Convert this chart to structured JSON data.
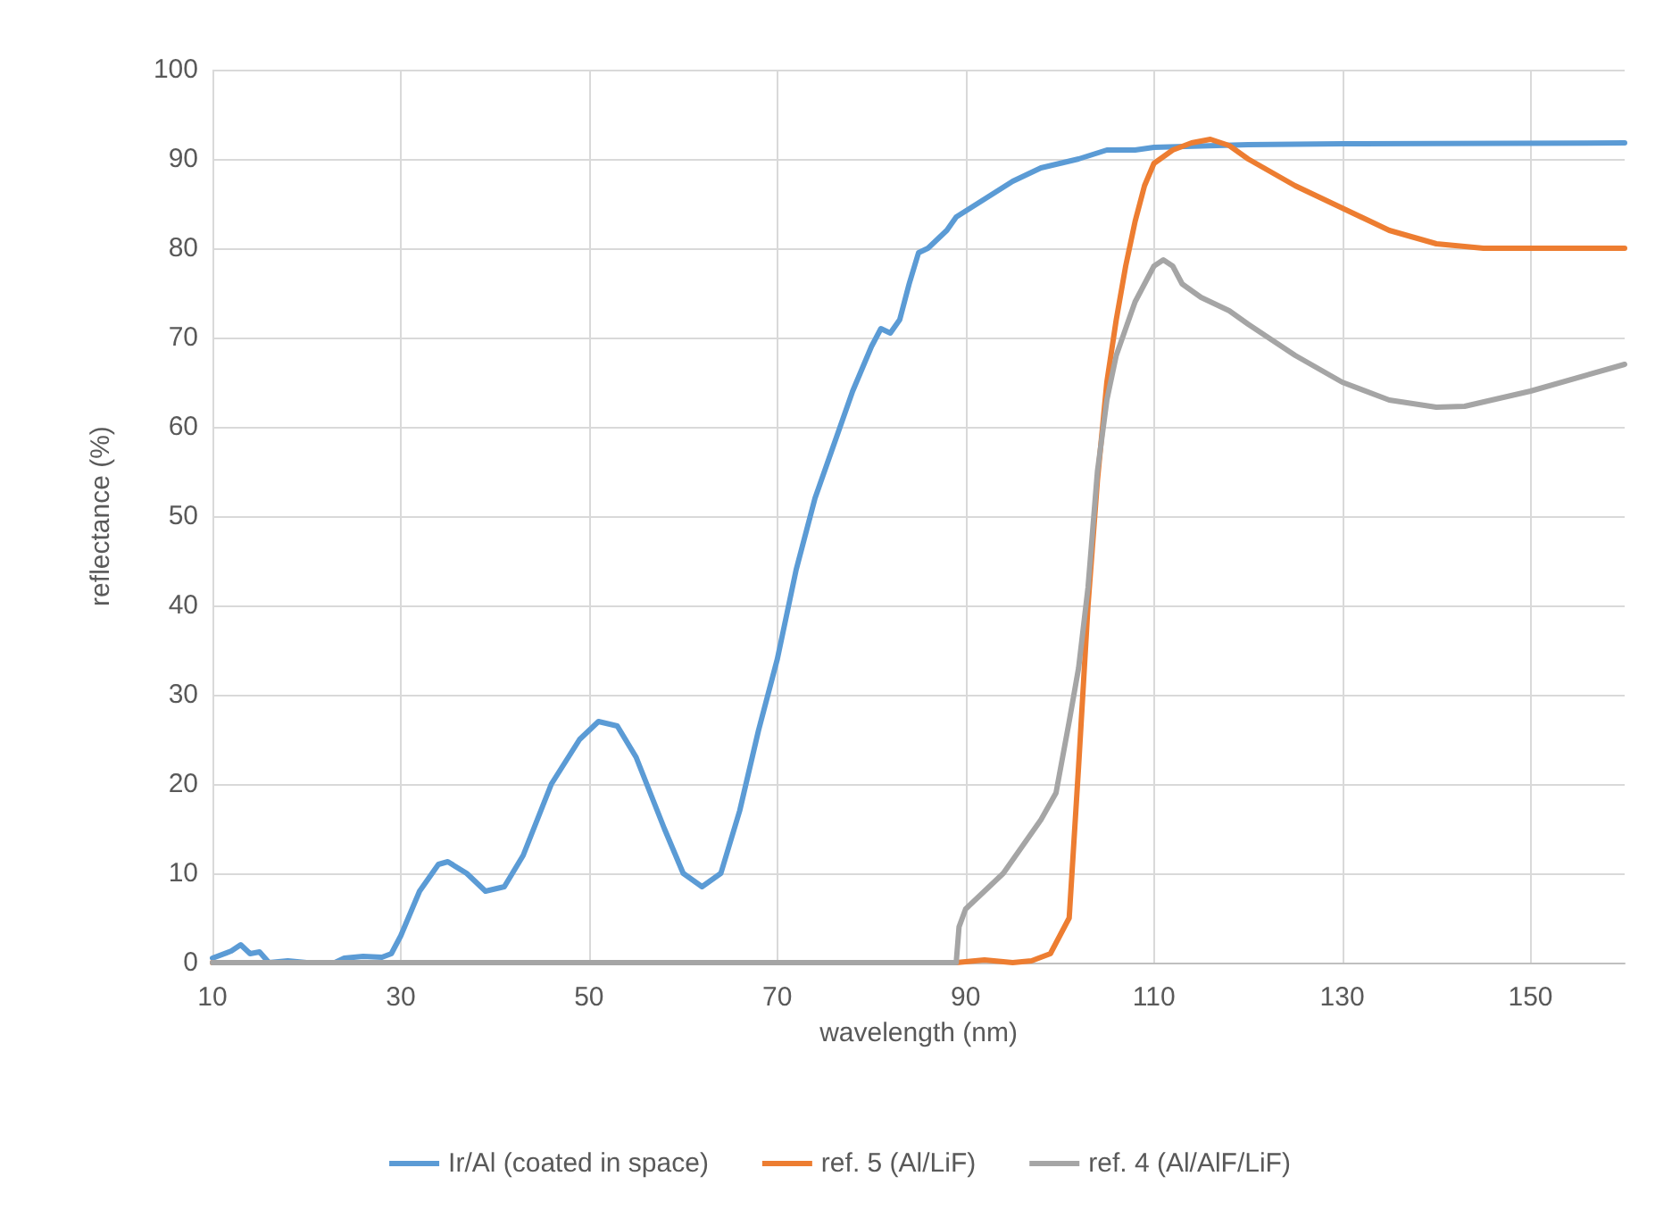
{
  "chart_data": {
    "type": "line",
    "xlabel": "wavelength (nm)",
    "ylabel": "reflectance (%)",
    "xlim": [
      10,
      160
    ],
    "xticks": [
      10,
      30,
      50,
      70,
      90,
      110,
      130,
      150
    ],
    "ylim": [
      0,
      100
    ],
    "yticks": [
      0,
      10,
      20,
      30,
      40,
      50,
      60,
      70,
      80,
      90,
      100
    ],
    "grid": true,
    "legend": "bottom",
    "marker": "none",
    "line_style": "solid",
    "series": [
      {
        "name": "Ir/Al (coated in space)",
        "color": "#5b9bd5",
        "x": [
          10,
          12,
          13,
          14,
          15,
          16,
          18,
          20,
          23,
          24,
          26,
          28,
          29,
          30,
          32,
          34,
          35,
          37,
          39,
          41,
          43,
          46,
          49,
          51,
          53,
          55,
          58,
          60,
          62,
          64,
          66,
          68,
          70,
          72,
          74,
          76,
          78,
          80,
          81,
          82,
          83,
          84,
          85,
          86,
          88,
          89,
          92,
          95,
          98,
          100,
          102,
          105,
          108,
          110,
          120,
          130,
          160
        ],
        "values": [
          0.5,
          1.3,
          2,
          1,
          1.2,
          0,
          0.2,
          0,
          0,
          0.5,
          0.7,
          0.6,
          1,
          3,
          8,
          11,
          11.3,
          10,
          8,
          8.5,
          12,
          20,
          25,
          27,
          26.5,
          23,
          15,
          10,
          8.5,
          10,
          17,
          26,
          34,
          44,
          52,
          58,
          64,
          69,
          71,
          70.5,
          72,
          76,
          79.5,
          80,
          82,
          83.5,
          85.5,
          87.5,
          89,
          89.5,
          90,
          91,
          91,
          91.3,
          91.6,
          91.7,
          91.8
        ]
      },
      {
        "name": "ref. 5 (Al/LiF)",
        "color": "#ed7d31",
        "x": [
          10,
          89,
          92,
          95,
          97,
          99,
          100,
          101,
          102,
          103,
          104,
          105,
          106,
          107,
          108,
          109,
          110,
          112,
          114,
          116,
          118,
          120,
          125,
          130,
          135,
          140,
          145,
          150,
          160
        ],
        "values": [
          0,
          0,
          0.3,
          0,
          0.2,
          1,
          3,
          5,
          22,
          40,
          54,
          65,
          72,
          78,
          83,
          87,
          89.5,
          91,
          91.8,
          92.2,
          91.5,
          90,
          87,
          84.5,
          82,
          80.5,
          80,
          80,
          80
        ]
      },
      {
        "name": "ref. 4 (Al/AlF/LiF)",
        "color": "#a5a5a5",
        "x": [
          10,
          89,
          89.3,
          90,
          92,
          94,
          96,
          98,
          99.6,
          101,
          102,
          103,
          104,
          105,
          106,
          108,
          110,
          111,
          112,
          113,
          115,
          118,
          120,
          125,
          130,
          135,
          140,
          143,
          150,
          160
        ],
        "values": [
          0,
          0,
          4,
          6,
          8,
          10,
          13,
          16,
          19,
          27,
          33,
          42,
          55,
          63,
          68,
          74,
          78,
          78.7,
          78,
          76,
          74.5,
          73,
          71.5,
          68,
          65,
          63,
          62.2,
          62.3,
          64,
          67
        ]
      }
    ]
  }
}
